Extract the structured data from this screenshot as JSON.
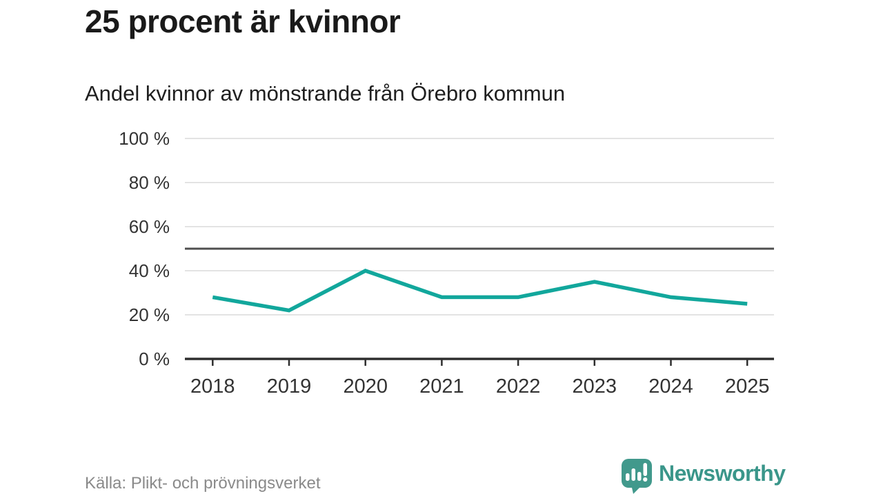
{
  "header": {
    "title": "25 procent är kvinnor",
    "subtitle": "Andel kvinnor av mönstrande från Örebro kommun"
  },
  "chart_data": {
    "type": "line",
    "title": "25 procent är kvinnor",
    "subtitle": "Andel kvinnor av mönstrande från Örebro kommun",
    "x": [
      2018,
      2019,
      2020,
      2021,
      2022,
      2023,
      2024,
      2025
    ],
    "series": [
      {
        "name": "Andel kvinnor av mönstrande",
        "values": [
          28,
          22,
          40,
          28,
          28,
          35,
          28,
          25
        ]
      }
    ],
    "unit": "%",
    "ylim": [
      0,
      100
    ],
    "yticks": [
      0,
      20,
      40,
      60,
      80,
      100
    ],
    "ytick_suffix": " %",
    "reference_line_y": 50,
    "grid": true,
    "legend": "none",
    "line_color": "#12A79C",
    "reference_line_color": "#4F4F4F",
    "grid_color": "#E3E3E3",
    "axis_color": "#2E2E2E",
    "tick_label_color": "#333333"
  },
  "footer": {
    "source": "Källa: Plikt- och prövningsverket",
    "brand_name": "Newsworthy"
  },
  "colors": {
    "background": "#FFFFFF",
    "title_text": "#1A1A1A",
    "source_text": "#8A8A8A",
    "brand_teal": "#3A968A",
    "logo_teal": "#41998C"
  }
}
